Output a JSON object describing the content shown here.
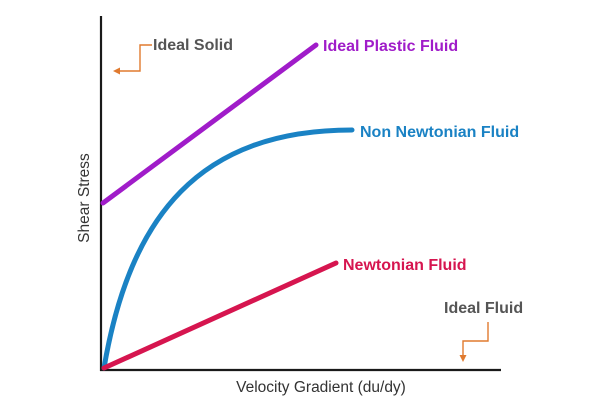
{
  "diagram": {
    "x_axis_label": "Velocity Gradient (du/dy)",
    "y_axis_label": "Shear Stress",
    "curves": {
      "ideal_plastic": {
        "label": "Ideal Plastic Fluid",
        "color": "#a01cc9"
      },
      "non_newtonian": {
        "label": "Non Newtonian Fluid",
        "color": "#1a82c4"
      },
      "newtonian": {
        "label": "Newtonian Fluid",
        "color": "#d6154f"
      }
    },
    "ideal_solid": {
      "label": "Ideal Solid"
    },
    "ideal_fluid": {
      "label": "Ideal Fluid"
    },
    "callout_color": "#e07a2f"
  }
}
